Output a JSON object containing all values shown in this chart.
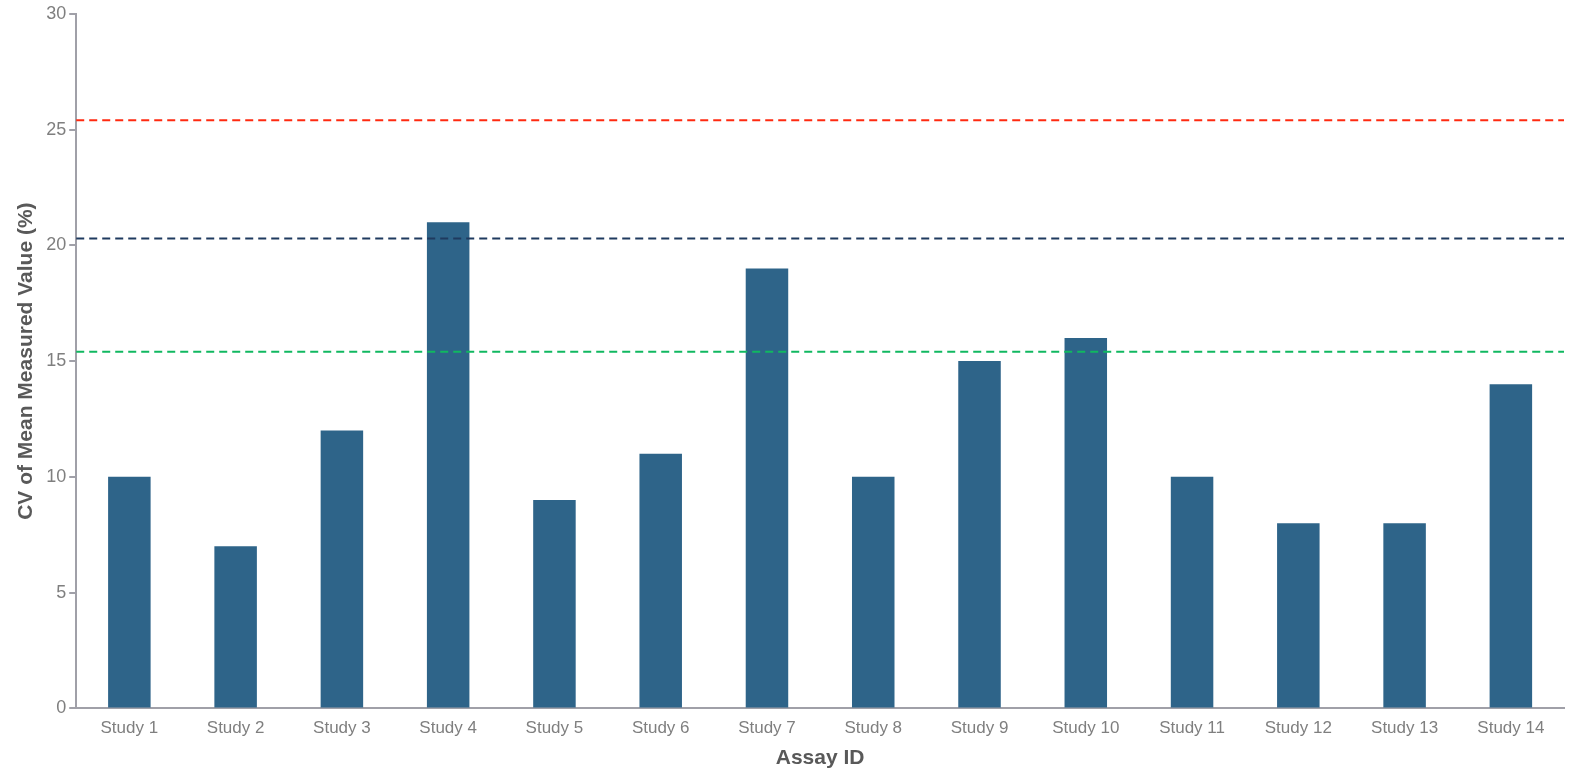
{
  "chart_data": {
    "type": "bar",
    "xlabel": "Assay ID",
    "ylabel": "CV of Mean Measured Value (%)",
    "categories": [
      "Study 1",
      "Study 2",
      "Study 3",
      "Study 4",
      "Study 5",
      "Study 6",
      "Study 7",
      "Study 8",
      "Study 9",
      "Study 10",
      "Study 11",
      "Study 12",
      "Study 13",
      "Study 14"
    ],
    "values": [
      10,
      7,
      12,
      21,
      9,
      11,
      19,
      10,
      15,
      16,
      10,
      8,
      8,
      14
    ],
    "color": "#2e6489",
    "ylim": [
      0,
      30
    ],
    "yticks": [
      0,
      5,
      10,
      15,
      20,
      25,
      30
    ],
    "ref_lines": [
      {
        "axis": "y",
        "value": 25.4,
        "color": "#ff2a10",
        "line_style": "dashed"
      },
      {
        "axis": "y",
        "value": 20.3,
        "color": "#1f3a5f",
        "line_style": "dashed"
      },
      {
        "axis": "y",
        "value": 15.4,
        "color": "#10b860",
        "line_style": "dashed"
      }
    ],
    "grid": false,
    "legend": false
  }
}
